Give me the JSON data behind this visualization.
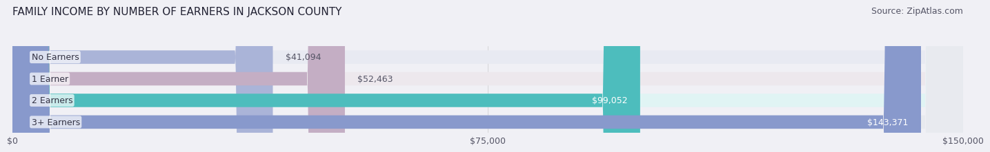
{
  "title": "FAMILY INCOME BY NUMBER OF EARNERS IN JACKSON COUNTY",
  "source": "Source: ZipAtlas.com",
  "categories": [
    "No Earners",
    "1 Earner",
    "2 Earners",
    "3+ Earners"
  ],
  "values": [
    41094,
    52463,
    99052,
    143371
  ],
  "bar_colors": [
    "#aab4d8",
    "#c4aec4",
    "#4dbdbd",
    "#8899cc"
  ],
  "bar_bg_colors": [
    "#e8eaf2",
    "#ede8ed",
    "#e0f4f4",
    "#e8eaef"
  ],
  "value_labels": [
    "$41,094",
    "$52,463",
    "$99,052",
    "$143,371"
  ],
  "value_label_colors": [
    "#555566",
    "#555566",
    "#ffffff",
    "#ffffff"
  ],
  "x_max": 150000,
  "x_ticks": [
    0,
    75000,
    150000
  ],
  "x_tick_labels": [
    "$0",
    "$75,000",
    "$150,000"
  ],
  "title_fontsize": 11,
  "source_fontsize": 9,
  "label_fontsize": 9,
  "value_fontsize": 9,
  "tick_fontsize": 9,
  "background_color": "#f0f0f5"
}
